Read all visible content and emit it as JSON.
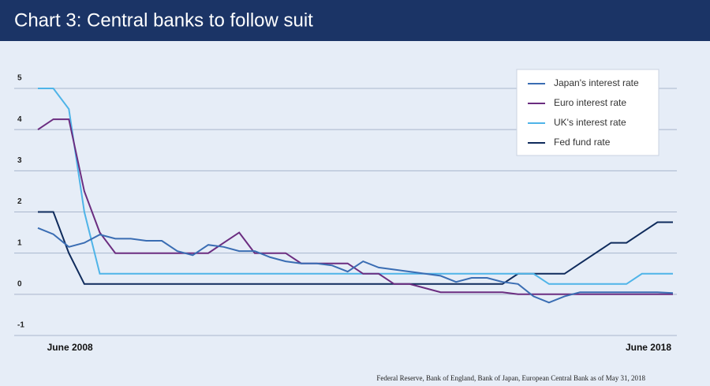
{
  "chart_data": {
    "type": "line",
    "title": "Chart 3: Central banks to follow suit",
    "source": "Federal Reserve, Bank of England, Bank of Japan, European Central Bank as of May 31, 2018",
    "categories": [
      null,
      "June 2008",
      null,
      null,
      null,
      null,
      null,
      null,
      null,
      null,
      null,
      null,
      null,
      null,
      null,
      null,
      null,
      null,
      null,
      null,
      null,
      null,
      null,
      null,
      null,
      null,
      null,
      null,
      null,
      null,
      null,
      null,
      null,
      null,
      null,
      null,
      null,
      null,
      null,
      null,
      null,
      "June 2018"
    ],
    "series": [
      {
        "name": "Japan's interest rate",
        "color": "#3a6db3",
        "values": [
          1.61,
          1.46,
          1.15,
          1.25,
          1.45,
          1.35,
          1.35,
          1.3,
          1.3,
          1.05,
          0.95,
          1.2,
          1.15,
          1.05,
          1.05,
          0.9,
          0.8,
          0.75,
          0.75,
          0.7,
          0.55,
          0.8,
          0.65,
          0.6,
          0.55,
          0.5,
          0.45,
          0.3,
          0.4,
          0.4,
          0.3,
          0.25,
          -0.05,
          -0.2,
          -0.05,
          0.05,
          0.05,
          0.05,
          0.05,
          0.05,
          0.05,
          0.03
        ]
      },
      {
        "name": "Euro interest rate",
        "color": "#6b2d80",
        "values": [
          4.0,
          4.25,
          4.25,
          2.5,
          1.5,
          1.0,
          1.0,
          1.0,
          1.0,
          1.0,
          1.0,
          1.0,
          1.25,
          1.5,
          1.0,
          1.0,
          1.0,
          0.75,
          0.75,
          0.75,
          0.75,
          0.5,
          0.5,
          0.25,
          0.25,
          0.15,
          0.05,
          0.05,
          0.05,
          0.05,
          0.05,
          0.0,
          0.0,
          0.0,
          0.0,
          0.0,
          0.0,
          0.0,
          0.0,
          0.0,
          0.0,
          0.0
        ]
      },
      {
        "name": "UK's interest rate",
        "color": "#4fb4e8",
        "values": [
          5.0,
          5.0,
          4.5,
          2.0,
          0.5,
          0.5,
          0.5,
          0.5,
          0.5,
          0.5,
          0.5,
          0.5,
          0.5,
          0.5,
          0.5,
          0.5,
          0.5,
          0.5,
          0.5,
          0.5,
          0.5,
          0.5,
          0.5,
          0.5,
          0.5,
          0.5,
          0.5,
          0.5,
          0.5,
          0.5,
          0.5,
          0.5,
          0.5,
          0.25,
          0.25,
          0.25,
          0.25,
          0.25,
          0.25,
          0.5,
          0.5,
          0.5
        ]
      },
      {
        "name": "Fed fund rate",
        "color": "#0f2b5c",
        "values": [
          2.0,
          2.0,
          1.0,
          0.25,
          0.25,
          0.25,
          0.25,
          0.25,
          0.25,
          0.25,
          0.25,
          0.25,
          0.25,
          0.25,
          0.25,
          0.25,
          0.25,
          0.25,
          0.25,
          0.25,
          0.25,
          0.25,
          0.25,
          0.25,
          0.25,
          0.25,
          0.25,
          0.25,
          0.25,
          0.25,
          0.25,
          0.5,
          0.5,
          0.5,
          0.5,
          0.75,
          1.0,
          1.25,
          1.25,
          1.5,
          1.75,
          1.75
        ]
      }
    ],
    "ylim": [
      -1,
      5
    ],
    "yticks": [
      5,
      4,
      3,
      2,
      1,
      0,
      -1
    ],
    "grid": true,
    "legend": "top-right"
  }
}
